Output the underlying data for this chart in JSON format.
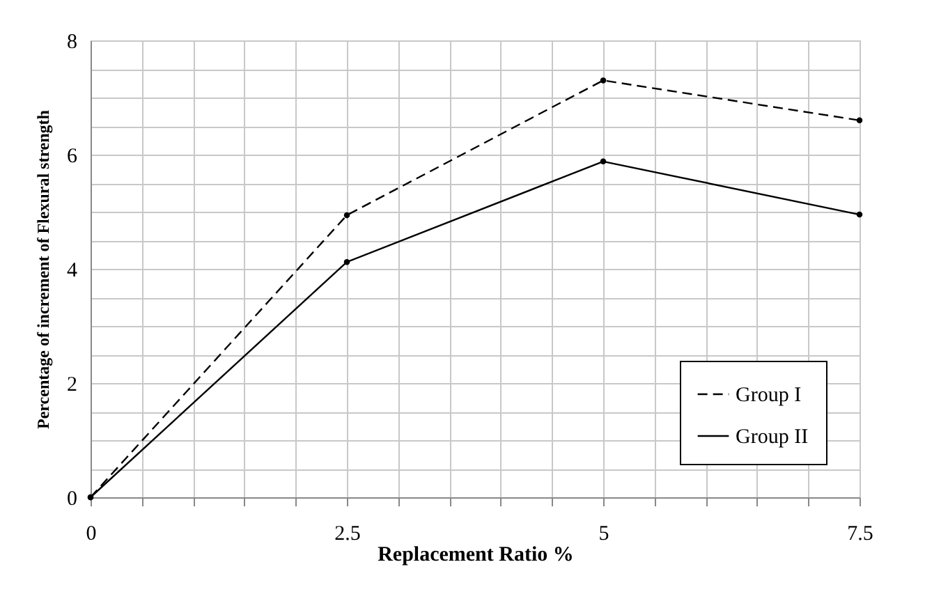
{
  "chart_data": {
    "type": "line",
    "xlabel": "Replacement Ratio %",
    "ylabel": "Percentage of increment of  Flexural strength",
    "x": [
      0,
      2.5,
      5,
      7.5
    ],
    "series": [
      {
        "name": "Group I",
        "color": "#000000",
        "line_style": "dashed",
        "values": [
          0,
          4.94,
          7.3,
          6.6
        ]
      },
      {
        "name": "Group II",
        "color": "#000000",
        "line_style": "solid",
        "values": [
          0,
          4.12,
          5.88,
          4.95
        ]
      }
    ],
    "xlim": [
      0,
      7.5
    ],
    "ylim": [
      0,
      8
    ],
    "xticks": [
      0,
      {
        "value": 0.5,
        "label": null
      },
      {
        "value": 1,
        "label": null
      },
      {
        "value": 1.5,
        "label": null
      },
      {
        "value": 2,
        "label": null
      },
      2.5,
      {
        "value": 3,
        "label": null
      },
      {
        "value": 3.5,
        "label": null
      },
      {
        "value": 4,
        "label": null
      },
      {
        "value": 4.5,
        "label": null
      },
      5,
      {
        "value": 5.5,
        "label": null
      },
      {
        "value": 6,
        "label": null
      },
      {
        "value": 6.5,
        "label": null
      },
      {
        "value": 7,
        "label": null
      },
      7.5
    ],
    "yticks": [
      0,
      {
        "value": 0.5,
        "label": null
      },
      {
        "value": 1,
        "label": null
      },
      {
        "value": 1.5,
        "label": null
      },
      2,
      {
        "value": 2.5,
        "label": null
      },
      {
        "value": 3,
        "label": null
      },
      {
        "value": 3.5,
        "label": null
      },
      4,
      {
        "value": 4.5,
        "label": null
      },
      {
        "value": 5,
        "label": null
      },
      {
        "value": 5.5,
        "label": null
      },
      6,
      {
        "value": 6.5,
        "label": null
      },
      {
        "value": 7,
        "label": null
      },
      {
        "value": 7.5,
        "label": null
      },
      8
    ],
    "grid": true,
    "legend": "bottom right",
    "marker": "circle"
  }
}
